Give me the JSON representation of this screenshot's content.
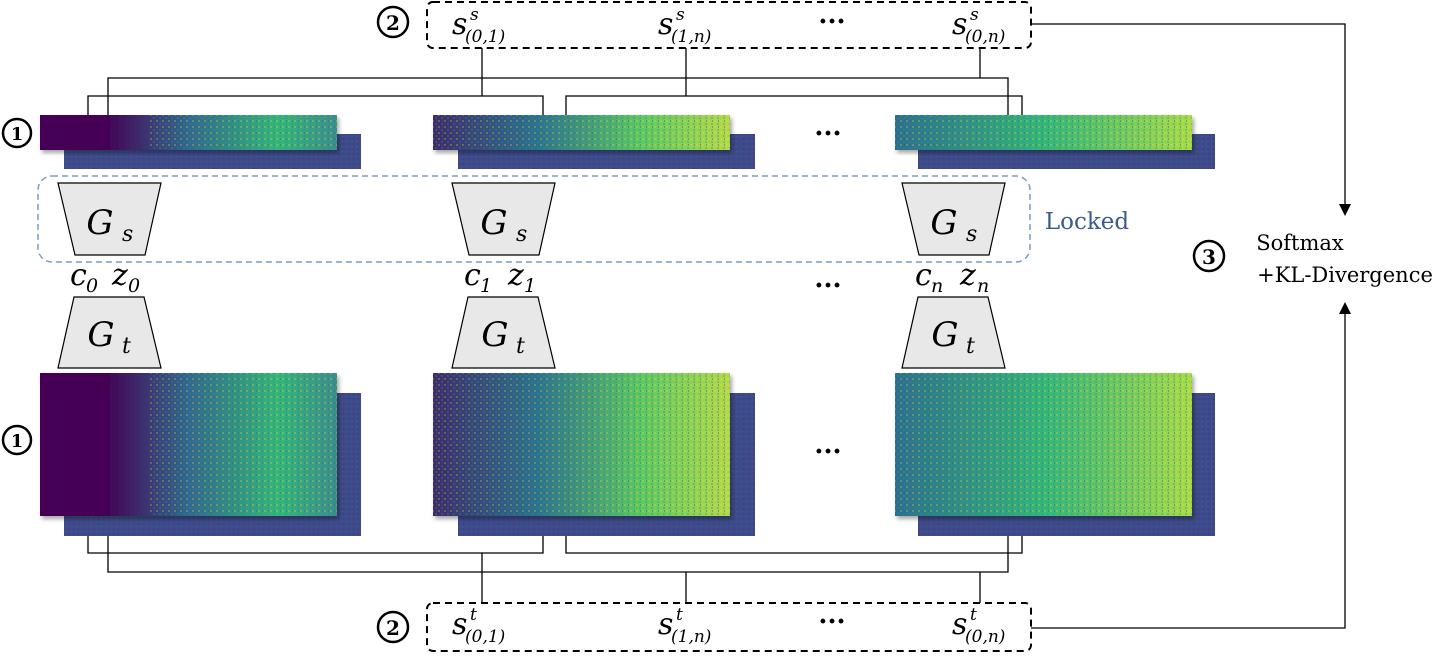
{
  "circled_labels": {
    "step1": "1",
    "step2": "2",
    "step3": "3"
  },
  "ellipsis": "···",
  "similarity_source": [
    {
      "base": "s",
      "sup": "s",
      "sub": "(0,1)"
    },
    {
      "base": "s",
      "sup": "s",
      "sub": "(1,n)"
    },
    {
      "base": "s",
      "sup": "s",
      "sub": "(0,n)"
    }
  ],
  "similarity_target": [
    {
      "base": "s",
      "sup": "t",
      "sub": "(0,1)"
    },
    {
      "base": "s",
      "sup": "t",
      "sub": "(1,n)"
    },
    {
      "base": "s",
      "sup": "t",
      "sub": "(0,n)"
    }
  ],
  "generators": {
    "source": {
      "base": "G",
      "sub": "s"
    },
    "target": {
      "base": "G",
      "sub": "t"
    }
  },
  "latents": [
    {
      "c": "c",
      "c_sub": "0",
      "z": "z",
      "z_sub": "0"
    },
    {
      "c": "c",
      "c_sub": "1",
      "z": "z",
      "z_sub": "1"
    },
    {
      "c": "c",
      "c_sub": "n",
      "z": "z",
      "z_sub": "n"
    }
  ],
  "locked_label": "Locked",
  "loss_label": {
    "line1": "Softmax",
    "line2": "+KL-Divergence"
  },
  "colors": {
    "viridis_dark": "#440154",
    "viridis_blue": "#3b528b",
    "viridis_teal": "#21918c",
    "viridis_green": "#5ec962",
    "viridis_yellow": "#fde725",
    "locked_border": "#7a9cc6",
    "locked_text": "#3b5a8f",
    "trapezoid_fill": "#e8e8e8"
  },
  "icons": {
    "circled_number": "circled-number-icon",
    "arrow": "arrow-head-icon"
  }
}
